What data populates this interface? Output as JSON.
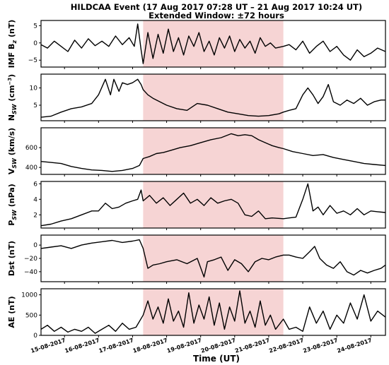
{
  "chart_data": {
    "type": "line",
    "title": "HILDCAA Event (17 Aug 2017 07:28 UT – 21 Aug 2017 10:24 UT)",
    "subtitle": "Extended Window: ±72 hours",
    "xlabel": "Time (UT)",
    "x_axis": {
      "ticks": [
        "15-08-2017",
        "16-08-2017",
        "17-08-2017",
        "18-08-2017",
        "19-08-2017",
        "20-08-2017",
        "21-08-2017",
        "22-08-2017",
        "23-08-2017",
        "24-08-2017"
      ],
      "range_days": [
        14.31,
        24.43
      ]
    },
    "highlight": {
      "start_day": 17.31,
      "end_day": 21.43,
      "color": "#f6d4d4"
    },
    "panels": [
      {
        "id": "imf_bz",
        "ylabel": "IMF B_z (nT)",
        "ylabel_main": "IMF B",
        "ylabel_sub": "z",
        "ylabel_tail": " (nT)",
        "ylim": [
          -7,
          6.5
        ],
        "yticks": [
          -5,
          0,
          5
        ],
        "ytick_labels": [
          "−5",
          "0",
          "5"
        ],
        "x": [
          14.31,
          14.5,
          14.7,
          14.9,
          15.1,
          15.3,
          15.5,
          15.7,
          15.9,
          16.1,
          16.3,
          16.5,
          16.7,
          16.9,
          17.05,
          17.15,
          17.25,
          17.31,
          17.45,
          17.6,
          17.75,
          17.9,
          18.05,
          18.2,
          18.35,
          18.5,
          18.65,
          18.8,
          18.95,
          19.1,
          19.25,
          19.4,
          19.55,
          19.7,
          19.85,
          20.0,
          20.15,
          20.3,
          20.45,
          20.6,
          20.75,
          20.9,
          21.05,
          21.2,
          21.43,
          21.6,
          21.8,
          22.0,
          22.2,
          22.4,
          22.6,
          22.8,
          23.0,
          23.2,
          23.4,
          23.6,
          23.8,
          24.0,
          24.2,
          24.43
        ],
        "y": [
          -0.5,
          -1.5,
          0.5,
          -1.0,
          -2.5,
          0.8,
          -1.5,
          1.2,
          -0.8,
          0.5,
          -1.0,
          2.0,
          -0.5,
          1.5,
          -1.0,
          5.5,
          -2.0,
          -6.0,
          3.0,
          -4.5,
          2.5,
          -3.0,
          4.0,
          -2.5,
          1.5,
          -3.5,
          2.0,
          -1.0,
          3.0,
          -2.5,
          0.5,
          -3.5,
          1.5,
          -1.5,
          2.0,
          -2.5,
          1.0,
          -1.5,
          0.5,
          -3.0,
          1.5,
          -1.0,
          0.0,
          -1.5,
          -1.0,
          -0.5,
          -2.0,
          0.5,
          -3.0,
          -1.0,
          0.5,
          -2.5,
          -1.0,
          -3.5,
          -5.0,
          -2.0,
          -4.0,
          -3.0,
          -1.5,
          -2.5
        ]
      },
      {
        "id": "n_sw",
        "ylabel": "N_SW (cm^-3)",
        "ylabel_main": "N",
        "ylabel_sub": "SW",
        "ylabel_tail": " (cm",
        "ylabel_sup": "−3",
        "ylabel_end": ")",
        "ylim": [
          0.5,
          14
        ],
        "yticks": [
          5,
          10
        ],
        "ytick_labels": [
          "5",
          "10"
        ],
        "x": [
          14.31,
          14.6,
          14.9,
          15.2,
          15.5,
          15.8,
          16.0,
          16.2,
          16.35,
          16.45,
          16.6,
          16.7,
          16.85,
          17.0,
          17.15,
          17.25,
          17.31,
          17.45,
          17.6,
          17.8,
          18.0,
          18.3,
          18.6,
          18.9,
          19.2,
          19.5,
          19.8,
          20.1,
          20.4,
          20.7,
          21.0,
          21.3,
          21.43,
          21.6,
          21.8,
          22.0,
          22.15,
          22.3,
          22.45,
          22.6,
          22.75,
          22.9,
          23.1,
          23.3,
          23.5,
          23.7,
          23.9,
          24.1,
          24.3,
          24.43
        ],
        "y": [
          1.5,
          1.8,
          3.0,
          4.0,
          4.5,
          5.5,
          8.0,
          12.5,
          8.0,
          12.5,
          9.0,
          11.5,
          11.0,
          11.5,
          12.5,
          11.0,
          9.5,
          8.0,
          7.0,
          6.0,
          5.0,
          4.0,
          3.5,
          5.5,
          5.0,
          4.0,
          3.0,
          2.5,
          2.0,
          1.8,
          2.0,
          2.5,
          3.0,
          3.5,
          4.0,
          8.0,
          10.0,
          8.0,
          5.5,
          7.5,
          11.0,
          6.0,
          5.0,
          6.5,
          5.5,
          7.0,
          5.0,
          6.0,
          6.5,
          6.5
        ]
      },
      {
        "id": "v_sw",
        "ylabel": "V_SW (km/s)",
        "ylabel_main": "V",
        "ylabel_sub": "SW",
        "ylabel_tail": " (km/s)",
        "ylim": [
          330,
          800
        ],
        "yticks": [
          400,
          600
        ],
        "ytick_labels": [
          "400",
          "600"
        ],
        "x": [
          14.31,
          14.6,
          14.9,
          15.2,
          15.5,
          15.8,
          16.1,
          16.4,
          16.7,
          17.0,
          17.2,
          17.31,
          17.5,
          17.7,
          17.9,
          18.1,
          18.4,
          18.7,
          19.0,
          19.3,
          19.6,
          19.9,
          20.1,
          20.3,
          20.5,
          20.7,
          20.9,
          21.1,
          21.3,
          21.43,
          21.7,
          22.0,
          22.3,
          22.6,
          22.9,
          23.2,
          23.5,
          23.8,
          24.1,
          24.43
        ],
        "y": [
          460,
          450,
          440,
          410,
          390,
          375,
          370,
          360,
          370,
          390,
          420,
          490,
          510,
          540,
          550,
          570,
          600,
          620,
          650,
          680,
          700,
          740,
          720,
          730,
          720,
          680,
          650,
          620,
          600,
          590,
          560,
          540,
          520,
          530,
          500,
          480,
          460,
          440,
          430,
          420
        ]
      },
      {
        "id": "p_sw",
        "ylabel": "P_SW (nPa)",
        "ylabel_main": "P",
        "ylabel_sub": "SW",
        "ylabel_tail": " (nPa)",
        "ylim": [
          0.3,
          6.3
        ],
        "yticks": [
          2,
          4,
          6
        ],
        "ytick_labels": [
          "2",
          "4",
          "6"
        ],
        "x": [
          14.31,
          14.6,
          14.9,
          15.2,
          15.5,
          15.8,
          16.0,
          16.2,
          16.4,
          16.6,
          16.8,
          17.0,
          17.15,
          17.25,
          17.31,
          17.5,
          17.7,
          17.9,
          18.1,
          18.3,
          18.5,
          18.7,
          18.9,
          19.1,
          19.3,
          19.5,
          19.7,
          19.9,
          20.1,
          20.3,
          20.5,
          20.7,
          20.9,
          21.1,
          21.43,
          21.6,
          21.8,
          22.0,
          22.15,
          22.3,
          22.45,
          22.6,
          22.8,
          23.0,
          23.2,
          23.4,
          23.6,
          23.8,
          24.0,
          24.2,
          24.43
        ],
        "y": [
          0.6,
          0.8,
          1.2,
          1.5,
          2.0,
          2.5,
          2.5,
          3.5,
          2.8,
          3.0,
          3.5,
          3.8,
          4.0,
          5.2,
          3.8,
          4.5,
          3.5,
          4.2,
          3.2,
          4.0,
          4.8,
          3.5,
          4.0,
          3.2,
          4.2,
          3.5,
          3.8,
          4.0,
          3.5,
          2.0,
          1.8,
          2.5,
          1.5,
          1.6,
          1.5,
          1.6,
          1.7,
          4.0,
          6.0,
          2.5,
          3.0,
          2.0,
          3.2,
          2.2,
          2.5,
          2.0,
          2.8,
          2.0,
          2.5,
          2.4,
          2.3
        ]
      },
      {
        "id": "dst",
        "ylabel": "Dst (nT)",
        "ylabel_main": "Dst (nT)",
        "ylabel_sub": "",
        "ylabel_tail": "",
        "ylim": [
          -55,
          15
        ],
        "yticks": [
          -40,
          -20,
          0
        ],
        "ytick_labels": [
          "−40",
          "−20",
          "0"
        ],
        "x": [
          14.31,
          14.6,
          14.9,
          15.2,
          15.5,
          15.8,
          16.1,
          16.4,
          16.7,
          17.0,
          17.2,
          17.31,
          17.45,
          17.6,
          17.8,
          18.0,
          18.3,
          18.6,
          18.9,
          19.1,
          19.2,
          19.4,
          19.6,
          19.8,
          20.0,
          20.2,
          20.4,
          20.6,
          20.8,
          21.0,
          21.2,
          21.43,
          21.6,
          21.8,
          22.0,
          22.2,
          22.35,
          22.5,
          22.7,
          22.9,
          23.1,
          23.3,
          23.5,
          23.7,
          23.9,
          24.1,
          24.3,
          24.43
        ],
        "y": [
          -5,
          -3,
          -1,
          -5,
          0,
          3,
          5,
          7,
          4,
          6,
          8,
          -5,
          -35,
          -30,
          -28,
          -25,
          -22,
          -28,
          -20,
          -48,
          -25,
          -22,
          -18,
          -38,
          -22,
          -28,
          -40,
          -25,
          -20,
          -22,
          -18,
          -15,
          -15,
          -18,
          -20,
          -10,
          -2,
          -20,
          -30,
          -35,
          -25,
          -40,
          -45,
          -38,
          -42,
          -38,
          -35,
          -30
        ]
      },
      {
        "id": "ae",
        "ylabel": "AE (nT)",
        "ylabel_main": "AE (nT)",
        "ylabel_sub": "",
        "ylabel_tail": "",
        "ylim": [
          0,
          1150
        ],
        "yticks": [
          0,
          500,
          1000
        ],
        "ytick_labels": [
          "0",
          "500",
          "1000"
        ],
        "x": [
          14.31,
          14.5,
          14.7,
          14.9,
          15.1,
          15.3,
          15.5,
          15.7,
          15.9,
          16.1,
          16.3,
          16.5,
          16.7,
          16.9,
          17.1,
          17.31,
          17.45,
          17.6,
          17.75,
          17.9,
          18.05,
          18.2,
          18.35,
          18.5,
          18.65,
          18.8,
          18.95,
          19.1,
          19.25,
          19.4,
          19.55,
          19.7,
          19.85,
          20.0,
          20.15,
          20.3,
          20.45,
          20.6,
          20.75,
          20.9,
          21.05,
          21.2,
          21.43,
          21.6,
          21.8,
          22.0,
          22.2,
          22.4,
          22.6,
          22.8,
          23.0,
          23.2,
          23.4,
          23.6,
          23.8,
          24.0,
          24.2,
          24.43
        ],
        "y": [
          150,
          250,
          100,
          200,
          80,
          150,
          100,
          200,
          50,
          150,
          250,
          100,
          300,
          150,
          200,
          500,
          850,
          400,
          700,
          300,
          900,
          350,
          600,
          200,
          1050,
          300,
          750,
          400,
          950,
          250,
          800,
          150,
          700,
          350,
          1100,
          300,
          600,
          200,
          850,
          250,
          500,
          150,
          400,
          150,
          200,
          100,
          700,
          300,
          600,
          150,
          500,
          300,
          800,
          400,
          1000,
          350,
          600,
          450
        ]
      }
    ]
  }
}
